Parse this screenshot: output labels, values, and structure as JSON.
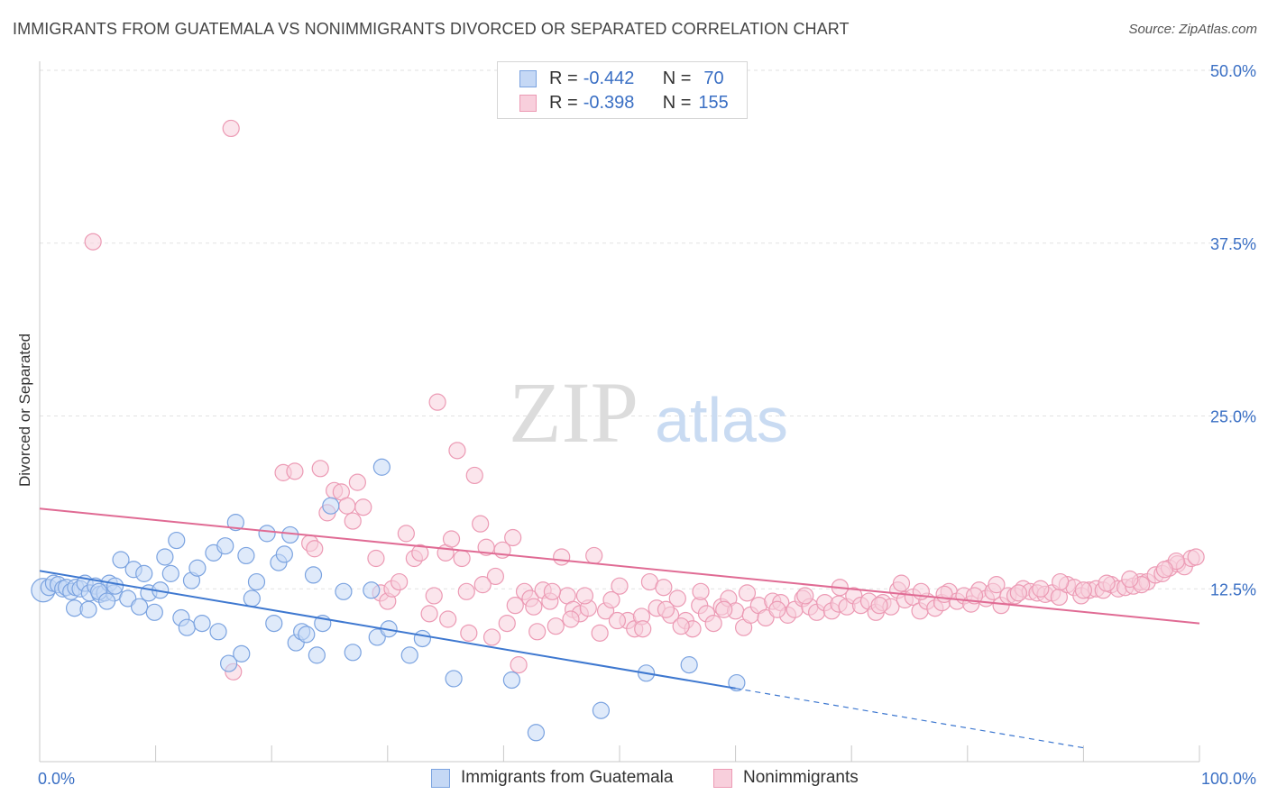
{
  "title": "IMMIGRANTS FROM GUATEMALA VS NONIMMIGRANTS DIVORCED OR SEPARATED CORRELATION CHART",
  "source": "Source: ZipAtlas.com",
  "watermark": {
    "zip": "ZIP",
    "atlas": "atlas"
  },
  "legend": {
    "r_label": "R =",
    "n_label": "N =",
    "rows": [
      {
        "r": "-0.442",
        "n": "70",
        "color": "#7ba3e0",
        "fill": "#c5d8f5"
      },
      {
        "r": "-0.398",
        "n": "155",
        "color": "#ec9ab4",
        "fill": "#f8cfdc"
      }
    ]
  },
  "bottom_legend": [
    "Immigrants from Guatemala",
    "Nonimmigrants"
  ],
  "chart_data": {
    "type": "scatter",
    "xlabel": "",
    "ylabel": "Divorced or Separated",
    "xlim": [
      0,
      100
    ],
    "ylim": [
      0,
      50
    ],
    "x_tick_labels": [
      "0.0%",
      "100.0%"
    ],
    "y_ticks": [
      {
        "value": 12.5,
        "label": "12.5%"
      },
      {
        "value": 25.0,
        "label": "25.0%"
      },
      {
        "value": 37.5,
        "label": "37.5%"
      },
      {
        "value": 50.0,
        "label": "50.0%"
      }
    ],
    "grid": true,
    "series": [
      {
        "name": "Immigrants from Guatemala",
        "color": "#7ba3e0",
        "fill": "#c5d8f5",
        "line_color": "#3e78d0",
        "trend": {
          "x0": 0,
          "y0": 13.8,
          "x1": 60,
          "y1": 5.3,
          "dash_to_x": 90,
          "dash_to_y": 1.0
        },
        "points": [
          [
            0.3,
            12.4
          ],
          [
            0.8,
            12.6
          ],
          [
            1.2,
            12.9
          ],
          [
            1.6,
            12.8
          ],
          [
            2.0,
            12.5
          ],
          [
            2.3,
            12.6
          ],
          [
            2.7,
            12.3
          ],
          [
            3.1,
            12.6
          ],
          [
            3.5,
            12.5
          ],
          [
            3.9,
            12.9
          ],
          [
            4.3,
            12.2
          ],
          [
            4.8,
            12.7
          ],
          [
            5.2,
            12.1
          ],
          [
            5.6,
            12.2
          ],
          [
            6.0,
            12.9
          ],
          [
            6.4,
            12.2
          ],
          [
            3.0,
            11.1
          ],
          [
            4.2,
            11.0
          ],
          [
            5.1,
            12.3
          ],
          [
            6.5,
            12.7
          ],
          [
            5.8,
            11.6
          ],
          [
            7.0,
            14.6
          ],
          [
            7.6,
            11.8
          ],
          [
            8.1,
            13.9
          ],
          [
            8.6,
            11.2
          ],
          [
            9.0,
            13.6
          ],
          [
            9.4,
            12.2
          ],
          [
            9.9,
            10.8
          ],
          [
            10.4,
            12.4
          ],
          [
            10.8,
            14.8
          ],
          [
            11.3,
            13.6
          ],
          [
            11.8,
            16.0
          ],
          [
            12.2,
            10.4
          ],
          [
            12.7,
            9.7
          ],
          [
            13.1,
            13.1
          ],
          [
            13.6,
            14.0
          ],
          [
            14.0,
            10.0
          ],
          [
            15.0,
            15.1
          ],
          [
            15.4,
            9.4
          ],
          [
            16.0,
            15.6
          ],
          [
            16.3,
            7.1
          ],
          [
            16.9,
            17.3
          ],
          [
            17.4,
            7.8
          ],
          [
            17.8,
            14.9
          ],
          [
            18.3,
            11.8
          ],
          [
            18.7,
            13.0
          ],
          [
            19.6,
            16.5
          ],
          [
            20.2,
            10.0
          ],
          [
            20.6,
            14.4
          ],
          [
            21.1,
            15.0
          ],
          [
            21.6,
            16.4
          ],
          [
            22.1,
            8.6
          ],
          [
            22.6,
            9.4
          ],
          [
            23.0,
            9.2
          ],
          [
            23.6,
            13.5
          ],
          [
            23.9,
            7.7
          ],
          [
            24.4,
            10.0
          ],
          [
            25.1,
            18.5
          ],
          [
            26.2,
            12.3
          ],
          [
            27.0,
            7.9
          ],
          [
            28.6,
            12.4
          ],
          [
            29.1,
            9.0
          ],
          [
            29.5,
            21.3
          ],
          [
            30.1,
            9.6
          ],
          [
            31.9,
            7.7
          ],
          [
            33.0,
            8.9
          ],
          [
            35.7,
            6.0
          ],
          [
            40.7,
            5.9
          ],
          [
            42.8,
            2.1
          ],
          [
            48.4,
            3.7
          ],
          [
            52.3,
            6.4
          ],
          [
            56.0,
            7.0
          ],
          [
            60.1,
            5.7
          ]
        ]
      },
      {
        "name": "Nonimmigrants",
        "color": "#ec9ab4",
        "fill": "#f8cfdc",
        "line_color": "#e06b94",
        "trend": {
          "x0": 0,
          "y0": 18.3,
          "x1": 100,
          "y1": 10.0
        },
        "points": [
          [
            4.6,
            37.6
          ],
          [
            16.7,
            6.5
          ],
          [
            16.5,
            45.8
          ],
          [
            21.0,
            20.9
          ],
          [
            22.0,
            21.0
          ],
          [
            23.3,
            15.8
          ],
          [
            23.7,
            15.4
          ],
          [
            24.2,
            21.2
          ],
          [
            24.8,
            18.0
          ],
          [
            25.4,
            19.6
          ],
          [
            26.0,
            19.5
          ],
          [
            26.5,
            18.5
          ],
          [
            27.0,
            17.4
          ],
          [
            27.4,
            20.2
          ],
          [
            27.9,
            18.4
          ],
          [
            29.0,
            14.7
          ],
          [
            29.4,
            12.2
          ],
          [
            30.0,
            11.6
          ],
          [
            30.4,
            12.5
          ],
          [
            31.0,
            13.0
          ],
          [
            31.6,
            16.5
          ],
          [
            32.3,
            14.7
          ],
          [
            32.8,
            15.1
          ],
          [
            33.6,
            10.7
          ],
          [
            34.0,
            12.0
          ],
          [
            34.3,
            26.0
          ],
          [
            35.0,
            15.1
          ],
          [
            35.5,
            16.1
          ],
          [
            36.0,
            22.5
          ],
          [
            36.4,
            14.7
          ],
          [
            36.8,
            12.3
          ],
          [
            37.5,
            20.7
          ],
          [
            38.0,
            17.2
          ],
          [
            38.5,
            15.5
          ],
          [
            39.3,
            13.4
          ],
          [
            39.9,
            15.3
          ],
          [
            40.3,
            10.0
          ],
          [
            40.8,
            16.2
          ],
          [
            41.3,
            7.0
          ],
          [
            41.8,
            12.3
          ],
          [
            42.3,
            11.8
          ],
          [
            42.9,
            9.4
          ],
          [
            43.4,
            12.4
          ],
          [
            44.0,
            11.6
          ],
          [
            44.5,
            9.8
          ],
          [
            45.0,
            14.8
          ],
          [
            45.5,
            12.0
          ],
          [
            46.0,
            11.0
          ],
          [
            46.6,
            10.7
          ],
          [
            47.3,
            11.1
          ],
          [
            47.8,
            14.9
          ],
          [
            48.3,
            9.3
          ],
          [
            48.8,
            10.9
          ],
          [
            49.3,
            11.7
          ],
          [
            50.0,
            12.7
          ],
          [
            50.7,
            10.2
          ],
          [
            51.3,
            9.6
          ],
          [
            51.9,
            10.5
          ],
          [
            52.6,
            13.0
          ],
          [
            53.2,
            11.1
          ],
          [
            53.8,
            12.6
          ],
          [
            54.4,
            10.6
          ],
          [
            55.0,
            11.8
          ],
          [
            55.7,
            10.2
          ],
          [
            56.3,
            9.6
          ],
          [
            56.9,
            11.3
          ],
          [
            57.5,
            10.7
          ],
          [
            58.1,
            10.0
          ],
          [
            58.8,
            11.2
          ],
          [
            59.4,
            11.8
          ],
          [
            60.0,
            10.9
          ],
          [
            60.7,
            9.7
          ],
          [
            61.3,
            10.6
          ],
          [
            62.0,
            11.3
          ],
          [
            62.6,
            10.4
          ],
          [
            63.2,
            11.6
          ],
          [
            63.9,
            11.5
          ],
          [
            64.5,
            10.6
          ],
          [
            65.1,
            11.0
          ],
          [
            65.8,
            11.8
          ],
          [
            66.4,
            11.2
          ],
          [
            67.0,
            10.8
          ],
          [
            67.7,
            11.5
          ],
          [
            68.3,
            10.9
          ],
          [
            68.9,
            11.4
          ],
          [
            69.6,
            11.2
          ],
          [
            70.2,
            12.0
          ],
          [
            70.8,
            11.3
          ],
          [
            71.5,
            11.6
          ],
          [
            72.1,
            10.8
          ],
          [
            72.7,
            11.5
          ],
          [
            73.4,
            11.2
          ],
          [
            74.0,
            12.4
          ],
          [
            74.6,
            11.7
          ],
          [
            75.3,
            11.9
          ],
          [
            75.9,
            10.9
          ],
          [
            76.5,
            11.6
          ],
          [
            77.2,
            11.1
          ],
          [
            77.8,
            11.5
          ],
          [
            78.4,
            12.3
          ],
          [
            79.1,
            11.6
          ],
          [
            79.7,
            12.0
          ],
          [
            80.3,
            11.4
          ],
          [
            81.0,
            12.4
          ],
          [
            81.6,
            11.8
          ],
          [
            82.2,
            12.3
          ],
          [
            82.9,
            11.3
          ],
          [
            83.5,
            12.0
          ],
          [
            84.1,
            12.0
          ],
          [
            84.8,
            12.5
          ],
          [
            85.4,
            12.3
          ],
          [
            86.0,
            12.2
          ],
          [
            86.7,
            12.1
          ],
          [
            87.3,
            12.2
          ],
          [
            87.9,
            11.9
          ],
          [
            88.6,
            12.8
          ],
          [
            89.2,
            12.6
          ],
          [
            89.8,
            12.0
          ],
          [
            90.5,
            12.4
          ],
          [
            91.1,
            12.5
          ],
          [
            91.7,
            12.4
          ],
          [
            92.4,
            12.8
          ],
          [
            93.0,
            12.5
          ],
          [
            93.6,
            12.6
          ],
          [
            94.3,
            12.7
          ],
          [
            94.9,
            13.0
          ],
          [
            95.5,
            13.0
          ],
          [
            96.2,
            13.5
          ],
          [
            96.8,
            13.6
          ],
          [
            97.4,
            14.0
          ],
          [
            98.1,
            14.3
          ],
          [
            98.7,
            14.1
          ],
          [
            99.3,
            14.7
          ],
          [
            99.7,
            14.8
          ],
          [
            98.0,
            14.5
          ],
          [
            97.0,
            13.9
          ],
          [
            95.0,
            12.8
          ],
          [
            94.0,
            13.2
          ],
          [
            92.0,
            12.9
          ],
          [
            90.0,
            12.4
          ],
          [
            88.0,
            13.0
          ],
          [
            86.3,
            12.5
          ],
          [
            84.4,
            12.2
          ],
          [
            82.5,
            12.8
          ],
          [
            80.6,
            12.0
          ],
          [
            78.0,
            12.1
          ],
          [
            76.0,
            12.3
          ],
          [
            74.3,
            12.9
          ],
          [
            72.4,
            11.3
          ],
          [
            69.0,
            12.6
          ],
          [
            66.0,
            12.0
          ],
          [
            63.6,
            11.0
          ],
          [
            61.0,
            12.2
          ],
          [
            59.0,
            11.0
          ],
          [
            57.0,
            12.3
          ],
          [
            55.3,
            9.8
          ],
          [
            54.0,
            11.0
          ],
          [
            52.0,
            9.6
          ],
          [
            49.8,
            10.2
          ],
          [
            47.0,
            12.0
          ],
          [
            45.8,
            10.3
          ],
          [
            44.2,
            12.3
          ],
          [
            42.6,
            11.2
          ],
          [
            41.0,
            11.3
          ],
          [
            39.0,
            9.0
          ],
          [
            38.2,
            12.8
          ],
          [
            37.0,
            9.3
          ],
          [
            35.2,
            10.3
          ]
        ]
      }
    ]
  }
}
